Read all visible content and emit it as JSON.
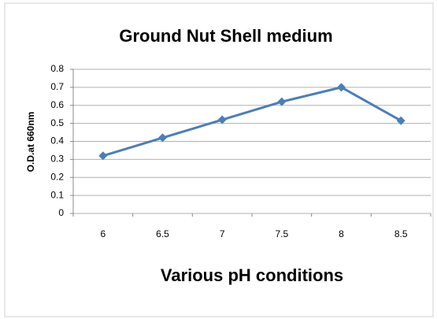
{
  "chart_data": {
    "type": "line",
    "title": "Ground Nut Shell medium",
    "x_label": "Various pH conditions",
    "y_label": "O.D.at 660nm",
    "categories": [
      "6",
      "6.5",
      "7",
      "7.5",
      "8",
      "8.5"
    ],
    "series": [
      {
        "name": "O.D.at 660nm",
        "color": "#4a7ebb",
        "values": [
          0.32,
          0.42,
          0.52,
          0.62,
          0.7,
          0.515
        ]
      }
    ],
    "ylim": [
      0,
      0.8
    ],
    "yticks": [
      0,
      0.1,
      0.2,
      0.3,
      0.4,
      0.5,
      0.6,
      0.7,
      0.8
    ],
    "grid": true
  }
}
